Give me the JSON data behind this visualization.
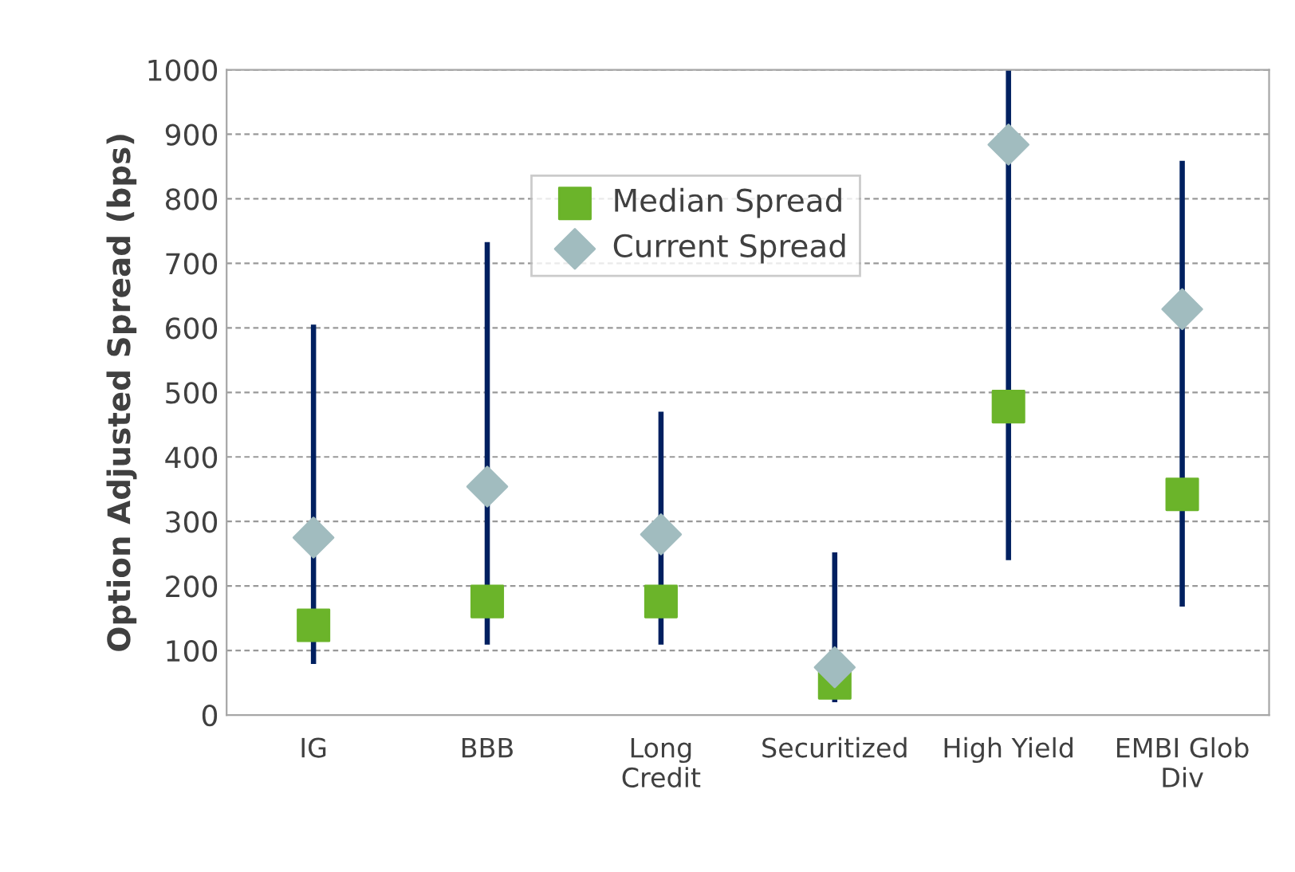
{
  "chart_data": {
    "type": "bar",
    "ylabel": "Option Adjusted Spread (bps)",
    "categories": [
      "IG",
      "BBB",
      "Long\nCredit",
      "Securitized",
      "High Yield",
      "EMBI Glob\nDiv"
    ],
    "series": [
      {
        "color": "#002060",
        "base": [
          79,
          109,
          109,
          20,
          240,
          168
        ],
        "values": [
          526,
          624,
          361,
          232,
          760,
          691
        ]
      },
      {
        "type": "scatter",
        "name": "Median Spread",
        "color": "#6bb42a",
        "marker": "square",
        "x": [
          "IG",
          "BBB",
          "Long\nCredit",
          "Securitized",
          "High Yield",
          "EMBI Glob\nDiv"
        ],
        "values": [
          139,
          176,
          176,
          50,
          478,
          342
        ]
      },
      {
        "type": "scatter",
        "name": "Current Spread",
        "color": "#a1bcbf",
        "marker": "diamond",
        "x": [
          "IG",
          "BBB",
          "Long\nCredit",
          "Securitized",
          "High Yield",
          "EMBI Glob\nDiv"
        ],
        "values": [
          275,
          354,
          280,
          74,
          884,
          629
        ]
      }
    ],
    "ylim": [
      0,
      1000
    ],
    "yticks": [
      0,
      100,
      200,
      300,
      400,
      500,
      600,
      700,
      800,
      900,
      1000
    ],
    "grid": "y",
    "legend": "top"
  }
}
